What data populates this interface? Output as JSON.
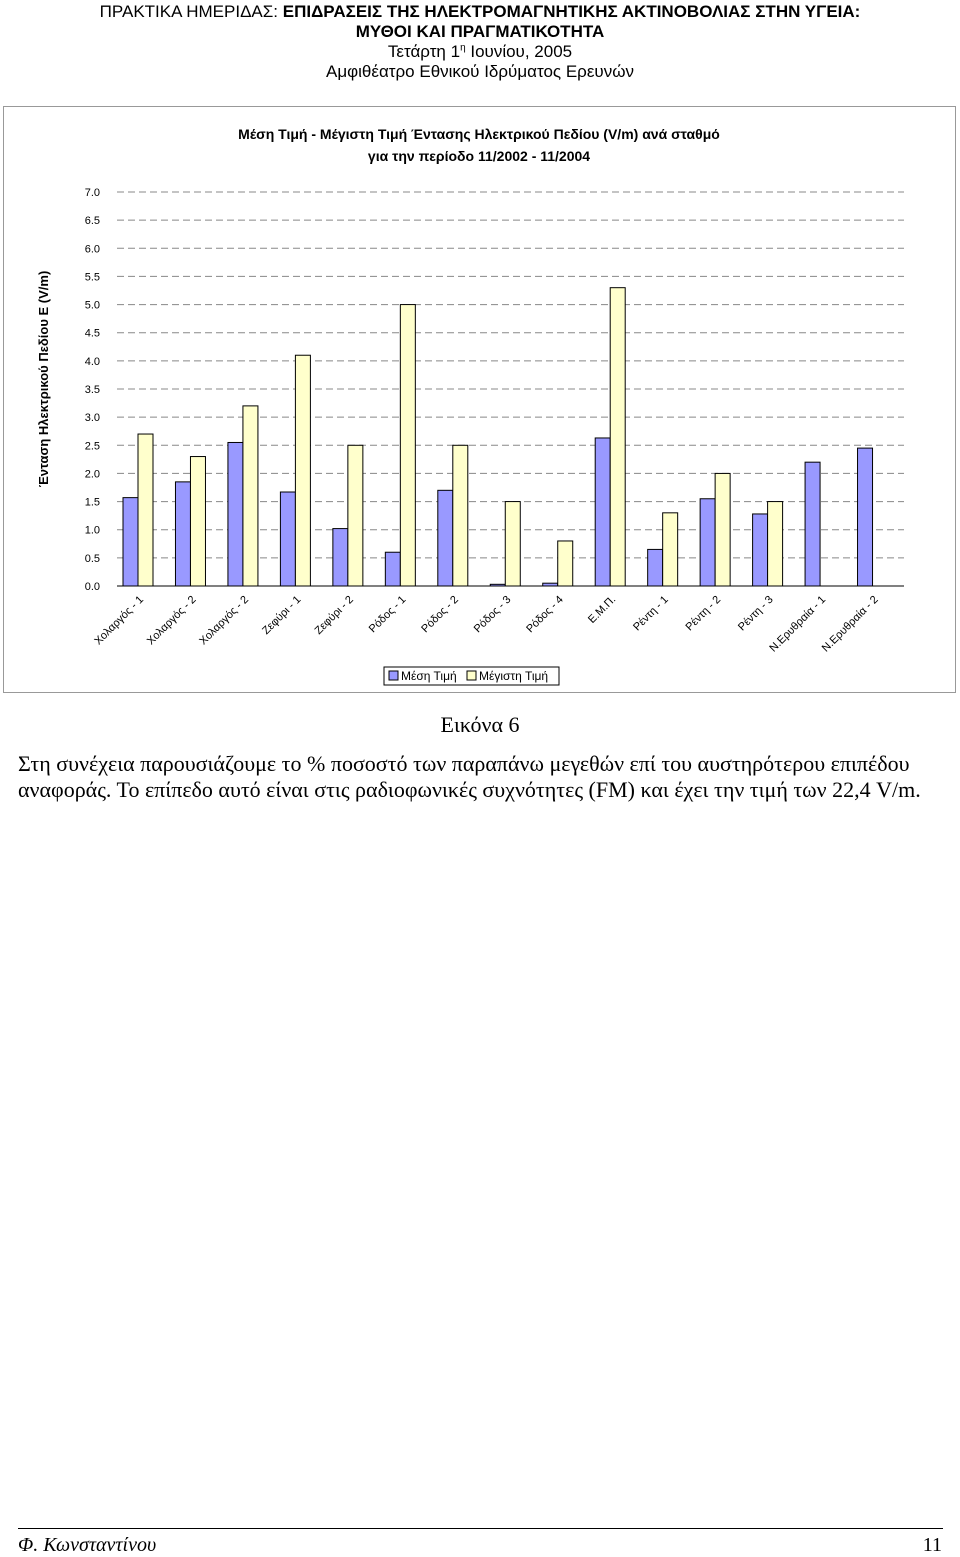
{
  "header": {
    "line1_prefix": "ΠΡΑΚΤΙΚΑ ΗΜΕΡΙΔΑΣ: ",
    "line1_bold": "ΕΠΙΔΡΑΣΕΙΣ ΤΗΣ ΗΛΕΚΤΡΟΜΑΓΝΗΤΙΚΗΣ ΑΚΤΙΝΟΒΟΛΙΑΣ ΣΤΗΝ ΥΓΕΙΑ:",
    "line2": "ΜΥΘΟΙ ΚΑΙ ΠΡΑΓΜΑΤΙΚΟΤΗΤΑ",
    "line3_a": "Τετάρτη 1",
    "line3_sup": "η",
    "line3_b": " Ιουνίου, 2005",
    "line4": "Αμφιθέατρο Εθνικού Ιδρύματος Ερευνών"
  },
  "chart_data": {
    "type": "bar",
    "title_line1": "Μέση Τιμή - Μέγιστη Τιμή Έντασης Ηλεκτρικού Πεδίου (V/m) ανά σταθμό",
    "title_line2": "για την περίοδο 11/2002 - 11/2004",
    "ylabel": "Ένταση Ηλεκτρικού Πεδίου E (V/m)",
    "xlabel": "",
    "ylim": [
      0,
      7
    ],
    "yticks": [
      "0.0",
      "0.5",
      "1.0",
      "1.5",
      "2.0",
      "2.5",
      "3.0",
      "3.5",
      "4.0",
      "4.5",
      "5.0",
      "5.5",
      "6.0",
      "6.5",
      "7.0"
    ],
    "grid": true,
    "legend_position": "bottom",
    "categories": [
      "Χολαργός - 1",
      "Χολαργός - 2",
      "Χολαργός - 2",
      "Ζεφύρι - 1",
      "Ζεφύρι - 2",
      "Ρόδος - 1",
      "Ρόδος - 2",
      "Ρόδος - 3",
      "Ρόδος - 4",
      "Ε.Μ.Π.",
      "Ρέντη - 1",
      "Ρέντη - 2",
      "Ρέντη - 3",
      "Ν.Ερυθραία - 1",
      "Ν.Ερυθραία - 2"
    ],
    "series": [
      {
        "name": "Μέση Τιμή",
        "color": "#9999ff",
        "values": [
          1.57,
          1.85,
          2.55,
          1.67,
          1.02,
          0.6,
          1.7,
          0.03,
          0.05,
          2.63,
          0.65,
          1.55,
          1.28,
          2.2,
          2.45
        ]
      },
      {
        "name": "Μέγιστη Τιμή",
        "color": "#ffffcc",
        "values": [
          2.7,
          2.3,
          3.2,
          4.1,
          2.5,
          5.0,
          2.5,
          1.5,
          0.8,
          5.3,
          1.3,
          2.0,
          1.5,
          null,
          null
        ]
      }
    ]
  },
  "caption": "Εικόνα 6",
  "paragraph": "Στη συνέχεια παρουσιάζουμε το % ποσοστό των παραπάνω μεγεθών επί του αυστηρότερου επιπέδου αναφοράς. Το επίπεδο αυτό είναι στις ραδιοφωνικές συχνότητες (FM) και έχει την τιμή των 22,4 V/m.",
  "footer": {
    "author": "Φ. Κωνσταντίνου",
    "page_number": "11"
  }
}
